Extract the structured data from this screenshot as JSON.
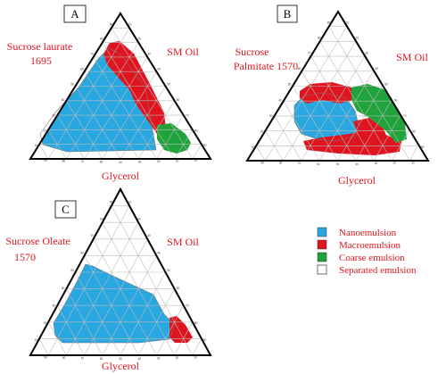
{
  "panels": [
    {
      "id": "A",
      "surfactant_lines": [
        "Sucrose laurate",
        "1695"
      ],
      "oil": "SM Oil",
      "glycerol": "Glycerol"
    },
    {
      "id": "B",
      "surfactant_lines": [
        "Sucrose",
        "Palmitate 1570"
      ],
      "oil": "SM Oil",
      "glycerol": "Glycerol"
    },
    {
      "id": "C",
      "surfactant_lines": [
        "Sucrose Oleate",
        "1570"
      ],
      "oil": "SM Oil",
      "glycerol": "Glycerol"
    }
  ],
  "tick_values": [
    "10",
    "20",
    "30",
    "40",
    "50",
    "60",
    "70",
    "80",
    "90"
  ],
  "legend": [
    {
      "label": "Nanoemulsion",
      "color": "#29a7e1"
    },
    {
      "label": "Macroemulsion",
      "color": "#e0141e"
    },
    {
      "label": "Coarse emulsion",
      "color": "#1fa33a"
    },
    {
      "label": "Separated emulsion",
      "color": "#ffffff"
    }
  ],
  "colors": {
    "nano": "#29a7e1",
    "macro": "#e0141e",
    "coarse": "#1fa33a",
    "label_red": "#e0141e"
  }
}
